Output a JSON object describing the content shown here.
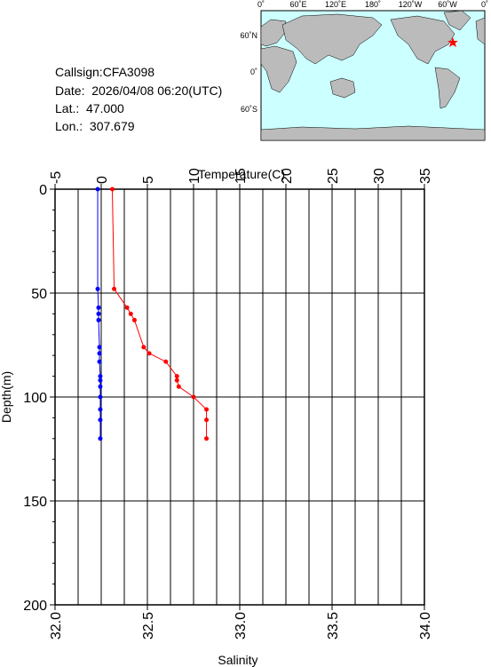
{
  "info": [
    "Callsign:CFA3098",
    "Date:  2026/04/08 06:20(UTC)",
    "Lat.:  47.000",
    "Lon.:  307.679"
  ],
  "map": {
    "lon_labels": [
      "0˚",
      "60˚E",
      "120˚E",
      "180˚",
      "120˚W",
      "60˚W",
      "0˚"
    ],
    "lat_labels": [
      "60˚N",
      "0˚",
      "60˚S"
    ]
  },
  "chart_data": {
    "type": "profile",
    "x2_label": "Temperature(C)",
    "x_label": "Salinity",
    "y_label": "Depth(m)",
    "x2lim": [
      -5,
      35
    ],
    "x2ticks": [
      -5,
      0,
      5,
      10,
      15,
      20,
      25,
      30,
      35
    ],
    "x2minor": [
      -2.5,
      2.5,
      7.5,
      12.5,
      17.5,
      22.5,
      27.5,
      32.5
    ],
    "xlim": [
      32,
      34
    ],
    "xticks": [
      {
        "value": 32,
        "label": "32.0"
      },
      32.5,
      {
        "value": 33,
        "label": "33.0"
      },
      33.5,
      {
        "value": 34,
        "label": "34.0"
      }
    ],
    "ylim": [
      0,
      200
    ],
    "invert_y": true,
    "yticks": [
      0,
      50,
      100,
      150,
      200
    ],
    "yminor": [
      10,
      20,
      30,
      40,
      60,
      70,
      80,
      90,
      110,
      120,
      130,
      140,
      160,
      170,
      180,
      190
    ],
    "grid": true,
    "y": [
      0,
      48,
      57,
      60,
      63,
      76,
      79,
      83,
      90,
      92,
      95,
      100,
      106,
      111,
      120
    ],
    "series": [
      {
        "axis": "x2",
        "color": "#0000ff",
        "values": [
          -0.38,
          -0.38,
          -0.29,
          -0.29,
          -0.29,
          -0.19,
          -0.19,
          -0.19,
          -0.1,
          -0.1,
          -0.1,
          -0.1,
          -0.1,
          -0.1,
          -0.1
        ]
      },
      {
        "axis": "x",
        "color": "#ff0000",
        "values": [
          32.31,
          32.32,
          32.39,
          32.41,
          32.43,
          32.48,
          32.51,
          32.6,
          32.66,
          32.66,
          32.67,
          32.75,
          32.82,
          32.82,
          32.82
        ]
      }
    ]
  }
}
